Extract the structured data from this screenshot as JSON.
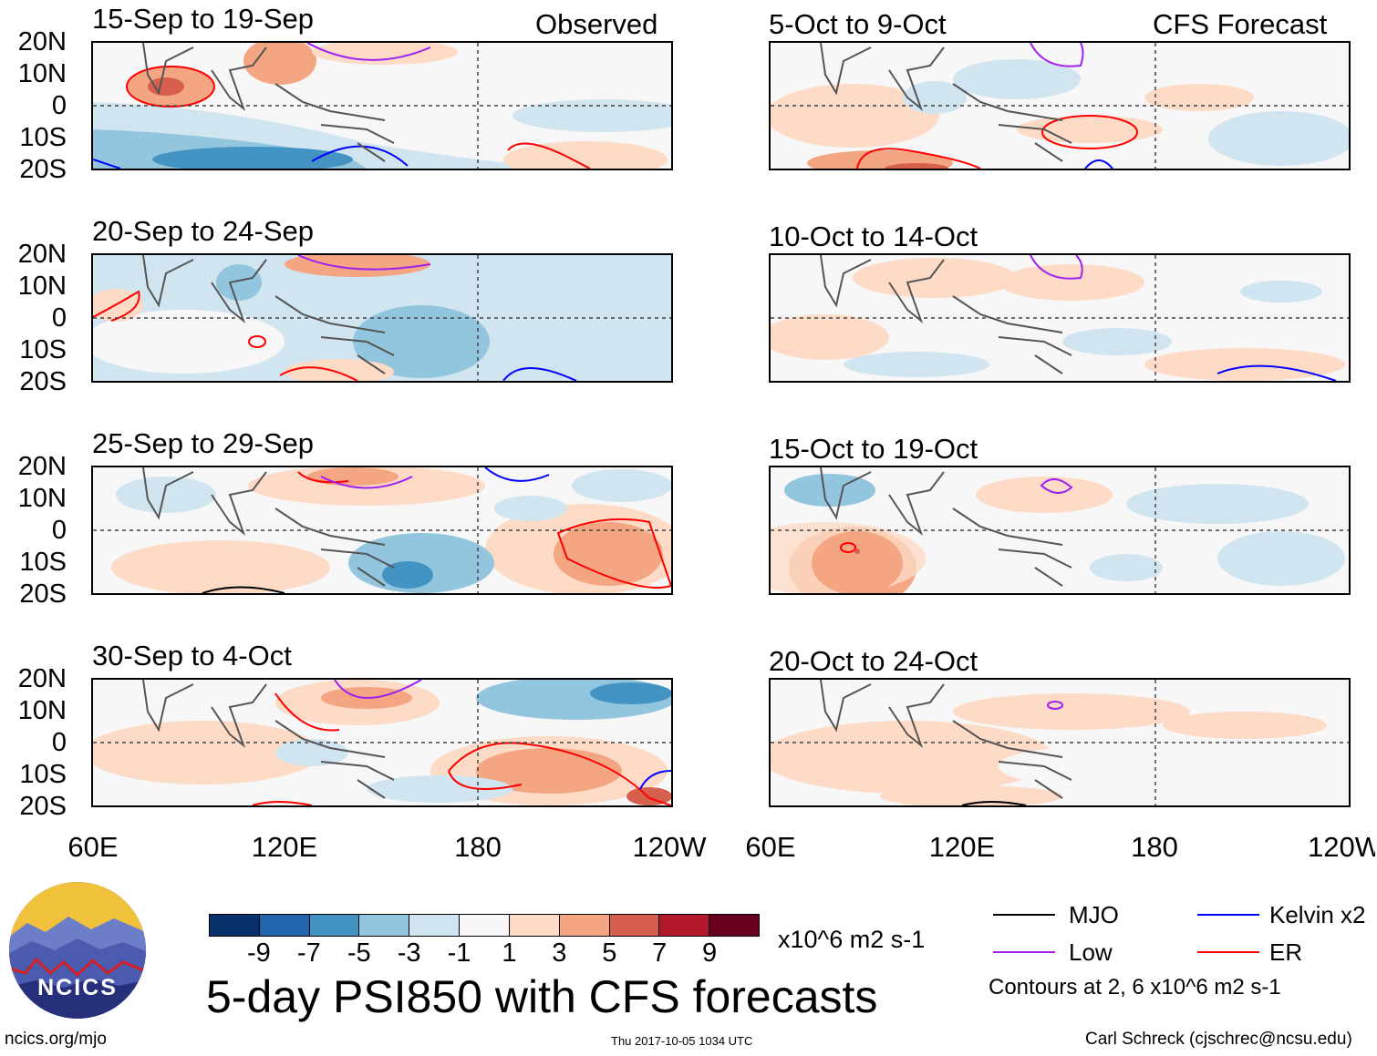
{
  "panels": [
    {
      "title": "15-Sep to 19-Sep",
      "subtitle": "Observed"
    },
    {
      "title": "5-Oct to 9-Oct",
      "subtitle": "CFS Forecast"
    },
    {
      "title": "20-Sep to 24-Sep",
      "subtitle": ""
    },
    {
      "title": "10-Oct to 14-Oct",
      "subtitle": ""
    },
    {
      "title": "25-Sep to 29-Sep",
      "subtitle": ""
    },
    {
      "title": "15-Oct to 19-Oct",
      "subtitle": ""
    },
    {
      "title": "30-Sep to 4-Oct",
      "subtitle": ""
    },
    {
      "title": "20-Oct to 24-Oct",
      "subtitle": ""
    }
  ],
  "lat_labels": [
    "20N",
    "10N",
    "0",
    "10S",
    "20S"
  ],
  "lon_labels": [
    "60E",
    "120E",
    "180",
    "120W"
  ],
  "colorbar": {
    "colors": [
      "#08306b",
      "#2166ac",
      "#4393c3",
      "#92c5de",
      "#d1e5f0",
      "#f7f7f7",
      "#fddbc7",
      "#f4a582",
      "#d6604d",
      "#b2182b",
      "#67001f"
    ],
    "ticks": [
      "-9",
      "-7",
      "-5",
      "-3",
      "-1",
      "1",
      "3",
      "5",
      "7",
      "9"
    ],
    "units": "x10^6 m2 s-1"
  },
  "main_title": "5-day PSI850 with CFS forecasts",
  "legend": {
    "items": [
      {
        "label": "MJO",
        "color": "#000000"
      },
      {
        "label": "Kelvin x2",
        "color": "#0000ff"
      },
      {
        "label": "Low",
        "color": "#a020f0"
      },
      {
        "label": "ER",
        "color": "#ff0000"
      }
    ],
    "note": "Contours at 2, 6 x10^6 m2 s-1"
  },
  "logo_text": "NCICS",
  "footer": {
    "left": "ncics.org/mjo",
    "center": "Thu 2017-10-05 1034 UTC",
    "right": "Carl Schreck (cjschrec@ncsu.edu)"
  }
}
